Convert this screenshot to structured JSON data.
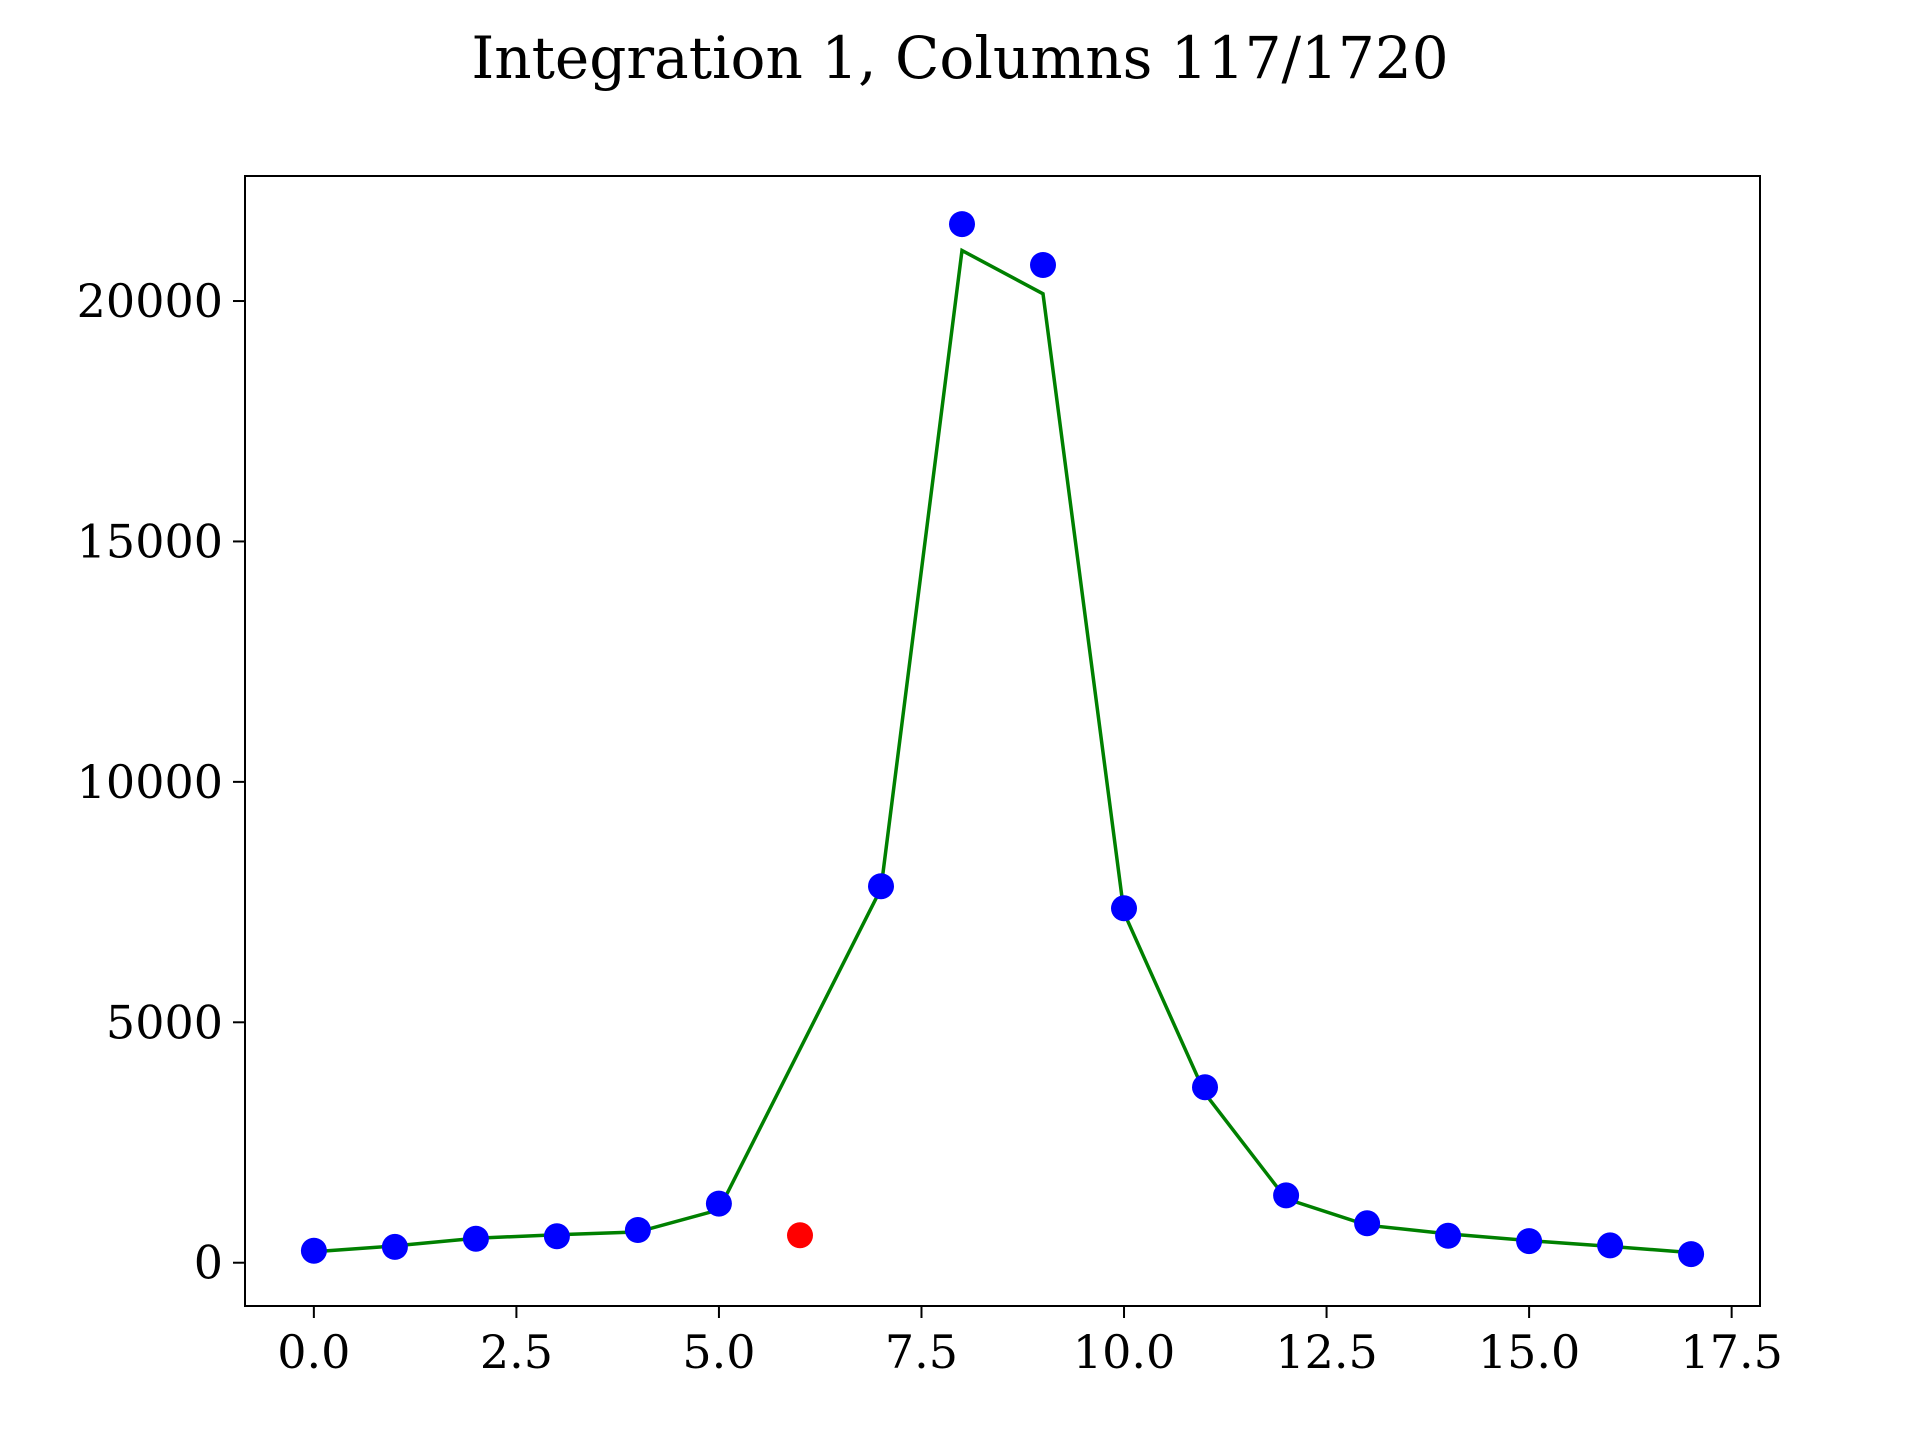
{
  "chart_data": {
    "type": "scatter",
    "title": "Integration 1, Columns 117/1720",
    "xlabel": "",
    "ylabel": "",
    "xlim": [
      -0.85,
      17.85
    ],
    "ylim": [
      -900,
      22600
    ],
    "x_ticks": [
      {
        "value": 0.0,
        "label": "0.0"
      },
      {
        "value": 2.5,
        "label": "2.5"
      },
      {
        "value": 5.0,
        "label": "5.0"
      },
      {
        "value": 7.5,
        "label": "7.5"
      },
      {
        "value": 10.0,
        "label": "10.0"
      },
      {
        "value": 12.5,
        "label": "12.5"
      },
      {
        "value": 15.0,
        "label": "15.0"
      },
      {
        "value": 17.5,
        "label": "17.5"
      }
    ],
    "y_ticks": [
      {
        "value": 0,
        "label": "0"
      },
      {
        "value": 5000,
        "label": "5000"
      },
      {
        "value": 10000,
        "label": "10000"
      },
      {
        "value": 15000,
        "label": "15000"
      },
      {
        "value": 20000,
        "label": "20000"
      }
    ],
    "grid": false,
    "colors": {
      "points": "#0000ff",
      "rejected_point": "#ff0000",
      "fit_line": "#008000"
    },
    "series": [
      {
        "type": "scatter",
        "color": "#0000ff",
        "points": [
          {
            "x": 0,
            "y": 250
          },
          {
            "x": 1,
            "y": 330
          },
          {
            "x": 2,
            "y": 500
          },
          {
            "x": 3,
            "y": 550
          },
          {
            "x": 4,
            "y": 680
          },
          {
            "x": 5,
            "y": 1230
          },
          {
            "x": 7,
            "y": 7830
          },
          {
            "x": 8,
            "y": 21600
          },
          {
            "x": 9,
            "y": 20750
          },
          {
            "x": 10,
            "y": 7370
          },
          {
            "x": 11,
            "y": 3650
          },
          {
            "x": 12,
            "y": 1400
          },
          {
            "x": 13,
            "y": 820
          },
          {
            "x": 14,
            "y": 560
          },
          {
            "x": 15,
            "y": 450
          },
          {
            "x": 16,
            "y": 360
          },
          {
            "x": 17,
            "y": 180
          }
        ]
      },
      {
        "type": "scatter",
        "color": "#ff0000",
        "points": [
          {
            "x": 6,
            "y": 570
          }
        ]
      },
      {
        "type": "line",
        "color": "#008000",
        "points": [
          {
            "x": 0,
            "y": 230
          },
          {
            "x": 1,
            "y": 350
          },
          {
            "x": 2,
            "y": 510
          },
          {
            "x": 3,
            "y": 580
          },
          {
            "x": 4,
            "y": 640
          },
          {
            "x": 5,
            "y": 1100
          },
          {
            "x": 7,
            "y": 7780
          },
          {
            "x": 8,
            "y": 21050
          },
          {
            "x": 9,
            "y": 20150
          },
          {
            "x": 10,
            "y": 7280
          },
          {
            "x": 11,
            "y": 3520
          },
          {
            "x": 12,
            "y": 1330
          },
          {
            "x": 13,
            "y": 780
          },
          {
            "x": 14,
            "y": 600
          },
          {
            "x": 15,
            "y": 460
          },
          {
            "x": 16,
            "y": 340
          },
          {
            "x": 17,
            "y": 210
          }
        ]
      }
    ]
  }
}
